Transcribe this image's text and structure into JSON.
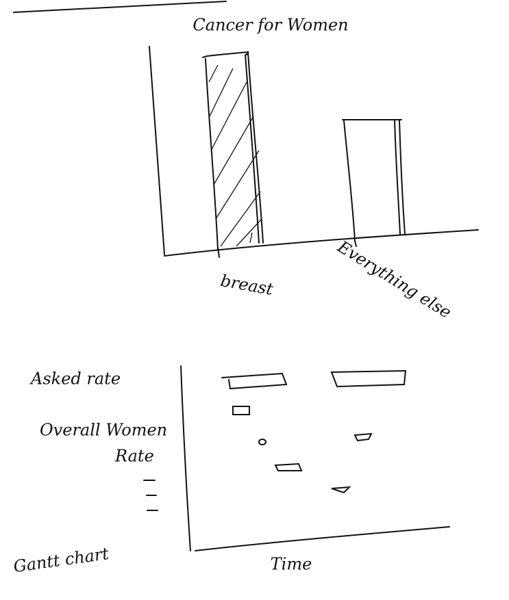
{
  "top_chart": {
    "title": "Cancer for Women",
    "categories": [
      "breast",
      "Everything else"
    ]
  },
  "bottom_chart": {
    "row_labels": [
      "Asked rate",
      "Overall Women",
      "Rate"
    ],
    "x_label": "Time"
  },
  "note": "Gantt chart"
}
